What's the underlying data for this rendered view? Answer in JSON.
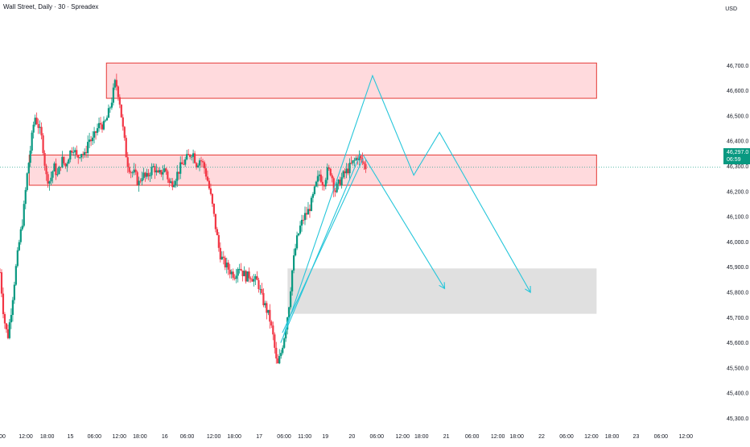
{
  "header": {
    "title": "Wall Street, Daily · 30 · Spreadex",
    "currency": "USD"
  },
  "price_badge": {
    "price": "46,297.0",
    "countdown": "06:59"
  },
  "colors": {
    "up": "#089981",
    "down": "#f23645",
    "zone_fill": "#ffcdd2",
    "zone_border": "#e53935",
    "target_fill": "#dddddd",
    "projection": "#26c6da",
    "grid_text": "#131722"
  },
  "chart_data": {
    "type": "candlestick",
    "y_axis": {
      "range": [
        45260,
        46960
      ],
      "ticks": [
        {
          "value": 46700,
          "label": "46,700.0"
        },
        {
          "value": 46600,
          "label": "46,600.0"
        },
        {
          "value": 46500,
          "label": "46,500.0"
        },
        {
          "value": 46400,
          "label": "46,400.0"
        },
        {
          "value": 46300,
          "label": "46,300.0"
        },
        {
          "value": 46200,
          "label": "46,200.0"
        },
        {
          "value": 46100,
          "label": "46,100.0"
        },
        {
          "value": 46000,
          "label": "46,000.0"
        },
        {
          "value": 45900,
          "label": "45,900.0"
        },
        {
          "value": 45800,
          "label": "45,800.0"
        },
        {
          "value": 45700,
          "label": "45,700.0"
        },
        {
          "value": 45600,
          "label": "45,600.0"
        },
        {
          "value": 45500,
          "label": "45,500.0"
        },
        {
          "value": 45400,
          "label": "45,400.0"
        },
        {
          "value": 45300,
          "label": "45,300.0"
        }
      ]
    },
    "x_axis": {
      "range": [
        0,
        84
      ],
      "ticks": [
        {
          "t": 0,
          "label": "00"
        },
        {
          "t": 3,
          "label": "12:00"
        },
        {
          "t": 5.5,
          "label": "18:00"
        },
        {
          "t": 8.2,
          "label": "15"
        },
        {
          "t": 11,
          "label": "06:00"
        },
        {
          "t": 13.9,
          "label": "12:00"
        },
        {
          "t": 16.3,
          "label": "18:00"
        },
        {
          "t": 19.2,
          "label": "16"
        },
        {
          "t": 21.8,
          "label": "06:00"
        },
        {
          "t": 24.9,
          "label": "12:00"
        },
        {
          "t": 27.3,
          "label": "18:00"
        },
        {
          "t": 30.2,
          "label": "17"
        },
        {
          "t": 33.1,
          "label": "06:00"
        },
        {
          "t": 35.5,
          "label": "11:00"
        },
        {
          "t": 37.9,
          "label": "19"
        },
        {
          "t": 41,
          "label": "20"
        },
        {
          "t": 43.9,
          "label": "06:00"
        },
        {
          "t": 46.9,
          "label": "12:00"
        },
        {
          "t": 49.1,
          "label": "18:00"
        },
        {
          "t": 52,
          "label": "21"
        },
        {
          "t": 55,
          "label": "06:00"
        },
        {
          "t": 58,
          "label": "12:00"
        },
        {
          "t": 60.2,
          "label": "18:00"
        },
        {
          "t": 63.1,
          "label": "22"
        },
        {
          "t": 66,
          "label": "06:00"
        },
        {
          "t": 68.9,
          "label": "12:00"
        },
        {
          "t": 71.3,
          "label": "18:00"
        },
        {
          "t": 74.1,
          "label": "23"
        },
        {
          "t": 77,
          "label": "06:00"
        },
        {
          "t": 79.9,
          "label": "12:00"
        }
      ]
    },
    "current_price": 46297,
    "candles_seed": [
      45880,
      45700,
      45620,
      45740,
      45880,
      46000,
      46100,
      46260,
      46380,
      46500,
      46460,
      46400,
      46260,
      46240,
      46300,
      46260,
      46330,
      46300,
      46350,
      46380,
      46330,
      46360,
      46340,
      46410,
      46400,
      46440,
      46470,
      46460,
      46500,
      46560,
      46640,
      46570,
      46440,
      46320,
      46280,
      46270,
      46230,
      46270,
      46250,
      46280,
      46300,
      46260,
      46280,
      46290,
      46230,
      46240,
      46270,
      46300,
      46320,
      46340,
      46360,
      46310,
      46330,
      46300,
      46240,
      46160,
      46060,
      45960,
      45920,
      45900,
      45880,
      45870,
      45910,
      45880,
      45860,
      45870,
      45850,
      45840,
      45780,
      45740,
      45700,
      45620,
      45500,
      45560,
      45640,
      45740,
      45900,
      46000,
      46060,
      46100,
      46120,
      46160,
      46220,
      46270,
      46230,
      46280,
      46280,
      46200,
      46230,
      46260,
      46280,
      46300,
      46320,
      46340,
      46320,
      46297
    ],
    "zones": [
      {
        "name": "upper-supply",
        "y1": 46570,
        "y2": 46710,
        "t1": 12.4,
        "t2": 69.5,
        "kind": "resistance"
      },
      {
        "name": "middle-supply",
        "y1": 46225,
        "y2": 46345,
        "t1": 3.4,
        "t2": 69.5,
        "kind": "resistance"
      },
      {
        "name": "target",
        "y1": 45715,
        "y2": 45895,
        "t1": 33.5,
        "t2": 69.5,
        "kind": "target"
      }
    ],
    "projections": [
      {
        "name": "bullish-then-drop",
        "points": [
          [
            33,
            45625
          ],
          [
            43.4,
            46660
          ],
          [
            48.2,
            46265
          ],
          [
            51.2,
            46435
          ],
          [
            61.8,
            45800
          ]
        ]
      },
      {
        "name": "direct-drop",
        "points": [
          [
            42.3,
            46345
          ],
          [
            51.8,
            45815
          ]
        ]
      },
      {
        "name": "rally-line-1",
        "points": [
          [
            32.7,
            45600
          ],
          [
            42,
            46350
          ]
        ]
      },
      {
        "name": "rally-line-2",
        "points": [
          [
            32.9,
            45640
          ],
          [
            42.3,
            46330
          ]
        ]
      }
    ]
  }
}
